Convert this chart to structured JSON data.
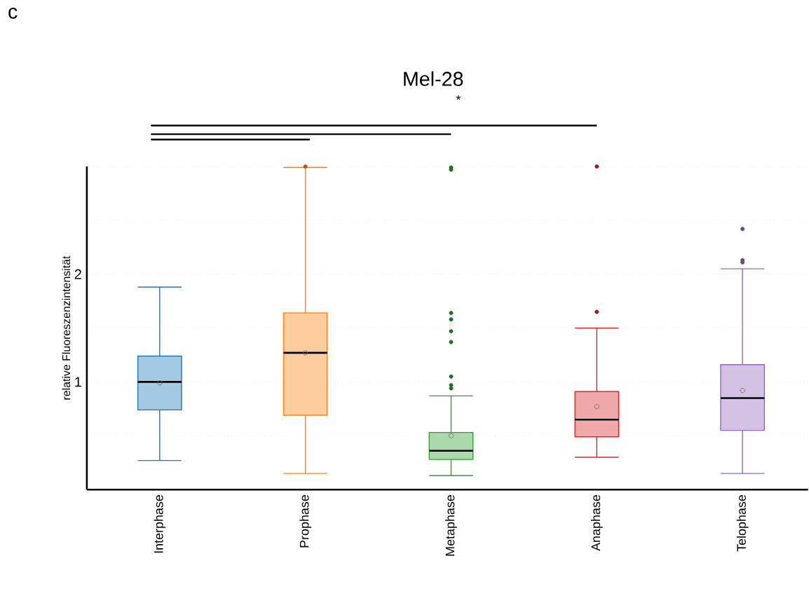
{
  "chart_data": {
    "type": "box",
    "title": "Mel-28",
    "ylabel": "relative Fluoreszenzintensität",
    "annotations": [
      "c",
      "*"
    ],
    "categories": [
      "Interphase",
      "Prophase",
      "Metaphase",
      "Anaphase",
      "Telophase"
    ],
    "colors": [
      "#1f77b4",
      "#ff7f0e",
      "#2ca02c",
      "#d62728",
      "#9467bd"
    ],
    "boxes": [
      {
        "low": 0.27,
        "q1": 0.74,
        "median": 1.0,
        "q3": 1.24,
        "high": 1.88,
        "mean": 0.99
      },
      {
        "low": 0.15,
        "q1": 0.69,
        "median": 1.27,
        "q3": 1.64,
        "high": 2.99,
        "mean": 1.27,
        "outliers": [
          3.0
        ]
      },
      {
        "low": 0.13,
        "q1": 0.28,
        "median": 0.36,
        "q3": 0.53,
        "high": 0.87,
        "mean": 0.5,
        "outliers": [
          0.94,
          0.97,
          1.05,
          1.37,
          1.47,
          1.58,
          1.64,
          2.97,
          2.99
        ]
      },
      {
        "low": 0.3,
        "q1": 0.49,
        "median": 0.65,
        "q3": 0.91,
        "high": 1.5,
        "mean": 0.77,
        "outliers": [
          1.65,
          3.0
        ]
      },
      {
        "low": 0.15,
        "q1": 0.55,
        "median": 0.85,
        "q3": 1.16,
        "high": 2.05,
        "mean": 0.92,
        "outliers": [
          2.11,
          2.13,
          2.42
        ]
      }
    ],
    "ylim": [
      0,
      3
    ],
    "yticks": [
      {
        "value": 0.5,
        "label": null
      },
      1,
      {
        "value": 1.5,
        "label": null
      },
      2,
      {
        "value": 2.5,
        "label": null
      },
      {
        "value": 3,
        "label": null
      }
    ],
    "grid": "y",
    "tick_labels": "xy"
  }
}
